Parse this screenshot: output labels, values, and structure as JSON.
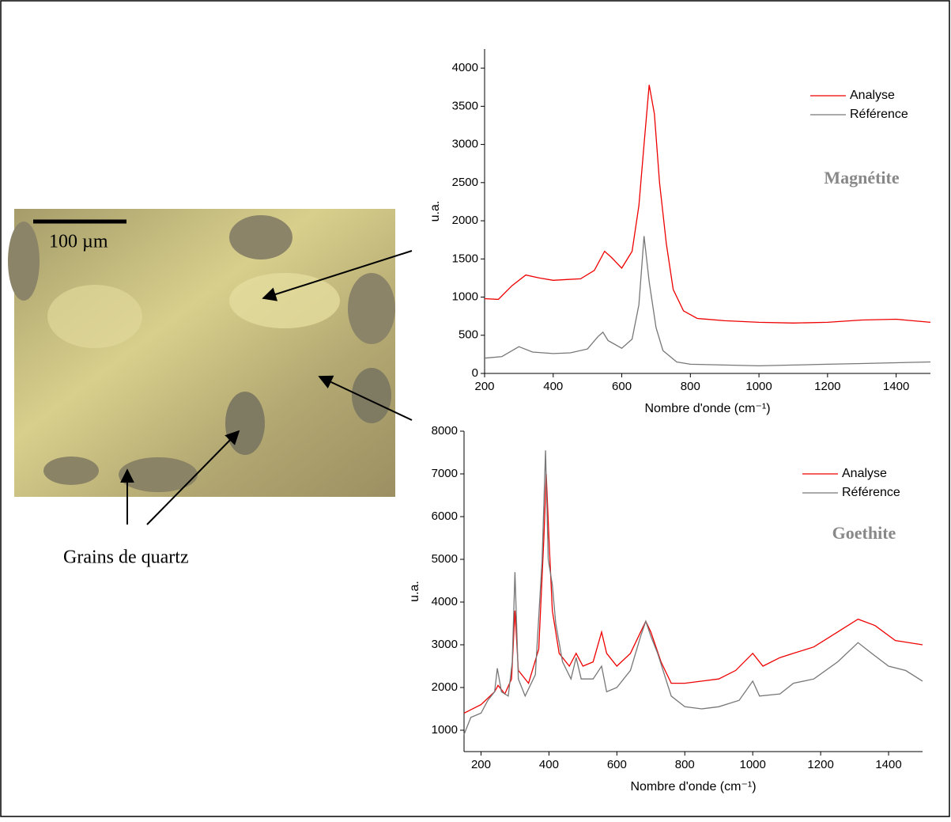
{
  "figure": {
    "scale_bar": "100 µm",
    "caption": "Grains de quartz"
  },
  "chart_data": [
    {
      "type": "line",
      "annotation": "Magnétite",
      "xlabel": "Nombre d'onde (cm⁻¹)",
      "ylabel": "u.a.",
      "xlim": [
        200,
        1500
      ],
      "ylim": [
        0,
        4250
      ],
      "xticks": [
        200,
        400,
        600,
        800,
        1000,
        1200,
        1400
      ],
      "yticks": [
        0,
        500,
        1000,
        1500,
        2000,
        2500,
        3000,
        3500,
        4000
      ],
      "legend": "upper right",
      "series": [
        {
          "name": "Analyse",
          "color": "#ee0000",
          "x": [
            200,
            240,
            280,
            320,
            360,
            400,
            440,
            480,
            520,
            550,
            570,
            600,
            630,
            650,
            665,
            680,
            695,
            710,
            730,
            750,
            780,
            820,
            900,
            1000,
            1100,
            1200,
            1300,
            1400,
            1500
          ],
          "values": [
            980,
            970,
            1150,
            1290,
            1250,
            1220,
            1230,
            1240,
            1350,
            1600,
            1520,
            1380,
            1600,
            2200,
            3000,
            3780,
            3400,
            2500,
            1700,
            1100,
            820,
            720,
            690,
            670,
            660,
            670,
            700,
            710,
            670
          ]
        },
        {
          "name": "Référence",
          "color": "#777777",
          "x": [
            200,
            250,
            300,
            340,
            400,
            450,
            500,
            530,
            545,
            560,
            600,
            630,
            650,
            665,
            680,
            700,
            720,
            760,
            800,
            900,
            1000,
            1100,
            1200,
            1300,
            1400,
            1500
          ],
          "values": [
            200,
            220,
            350,
            280,
            260,
            270,
            320,
            480,
            540,
            430,
            330,
            450,
            900,
            1800,
            1200,
            600,
            300,
            150,
            120,
            110,
            100,
            110,
            120,
            130,
            140,
            150
          ]
        }
      ]
    },
    {
      "type": "line",
      "annotation": "Goethite",
      "xlabel": "Nombre d'onde (cm⁻¹)",
      "ylabel": "u.a.",
      "xlim": [
        150,
        1500
      ],
      "ylim": [
        500,
        8000
      ],
      "xticks": [
        200,
        400,
        600,
        800,
        1000,
        1200,
        1400
      ],
      "yticks": [
        1000,
        2000,
        3000,
        4000,
        5000,
        6000,
        7000,
        8000
      ],
      "legend": "upper right",
      "series": [
        {
          "name": "Analyse",
          "color": "#ee0000",
          "x": [
            150,
            200,
            240,
            250,
            270,
            290,
            300,
            310,
            340,
            370,
            385,
            392,
            400,
            410,
            430,
            460,
            480,
            500,
            530,
            555,
            570,
            600,
            640,
            670,
            685,
            700,
            730,
            760,
            800,
            900,
            950,
            1000,
            1030,
            1080,
            1120,
            1180,
            1250,
            1310,
            1360,
            1420,
            1500
          ],
          "values": [
            1400,
            1600,
            1900,
            2050,
            1850,
            2200,
            3800,
            2400,
            2100,
            2900,
            5500,
            7000,
            5500,
            3800,
            2800,
            2500,
            2800,
            2500,
            2600,
            3300,
            2800,
            2500,
            2800,
            3300,
            3550,
            3300,
            2600,
            2100,
            2100,
            2200,
            2400,
            2800,
            2500,
            2700,
            2800,
            2950,
            3300,
            3600,
            3450,
            3100,
            3000
          ]
        },
        {
          "name": "Référence",
          "color": "#777777",
          "x": [
            150,
            170,
            200,
            220,
            240,
            248,
            260,
            280,
            292,
            300,
            310,
            330,
            360,
            380,
            390,
            398,
            410,
            420,
            440,
            465,
            480,
            495,
            530,
            555,
            570,
            600,
            640,
            670,
            685,
            700,
            720,
            760,
            800,
            850,
            900,
            960,
            1000,
            1020,
            1080,
            1120,
            1180,
            1250,
            1310,
            1350,
            1400,
            1450,
            1500
          ],
          "values": [
            900,
            1300,
            1400,
            1700,
            1900,
            2450,
            1900,
            1800,
            2600,
            4700,
            2200,
            1800,
            2300,
            5000,
            7550,
            5000,
            4400,
            3500,
            2600,
            2200,
            2700,
            2200,
            2200,
            2500,
            1900,
            2000,
            2400,
            3200,
            3550,
            3200,
            2800,
            1800,
            1550,
            1500,
            1550,
            1700,
            2150,
            1800,
            1850,
            2100,
            2200,
            2600,
            3050,
            2800,
            2500,
            2400,
            2150
          ]
        }
      ]
    }
  ]
}
